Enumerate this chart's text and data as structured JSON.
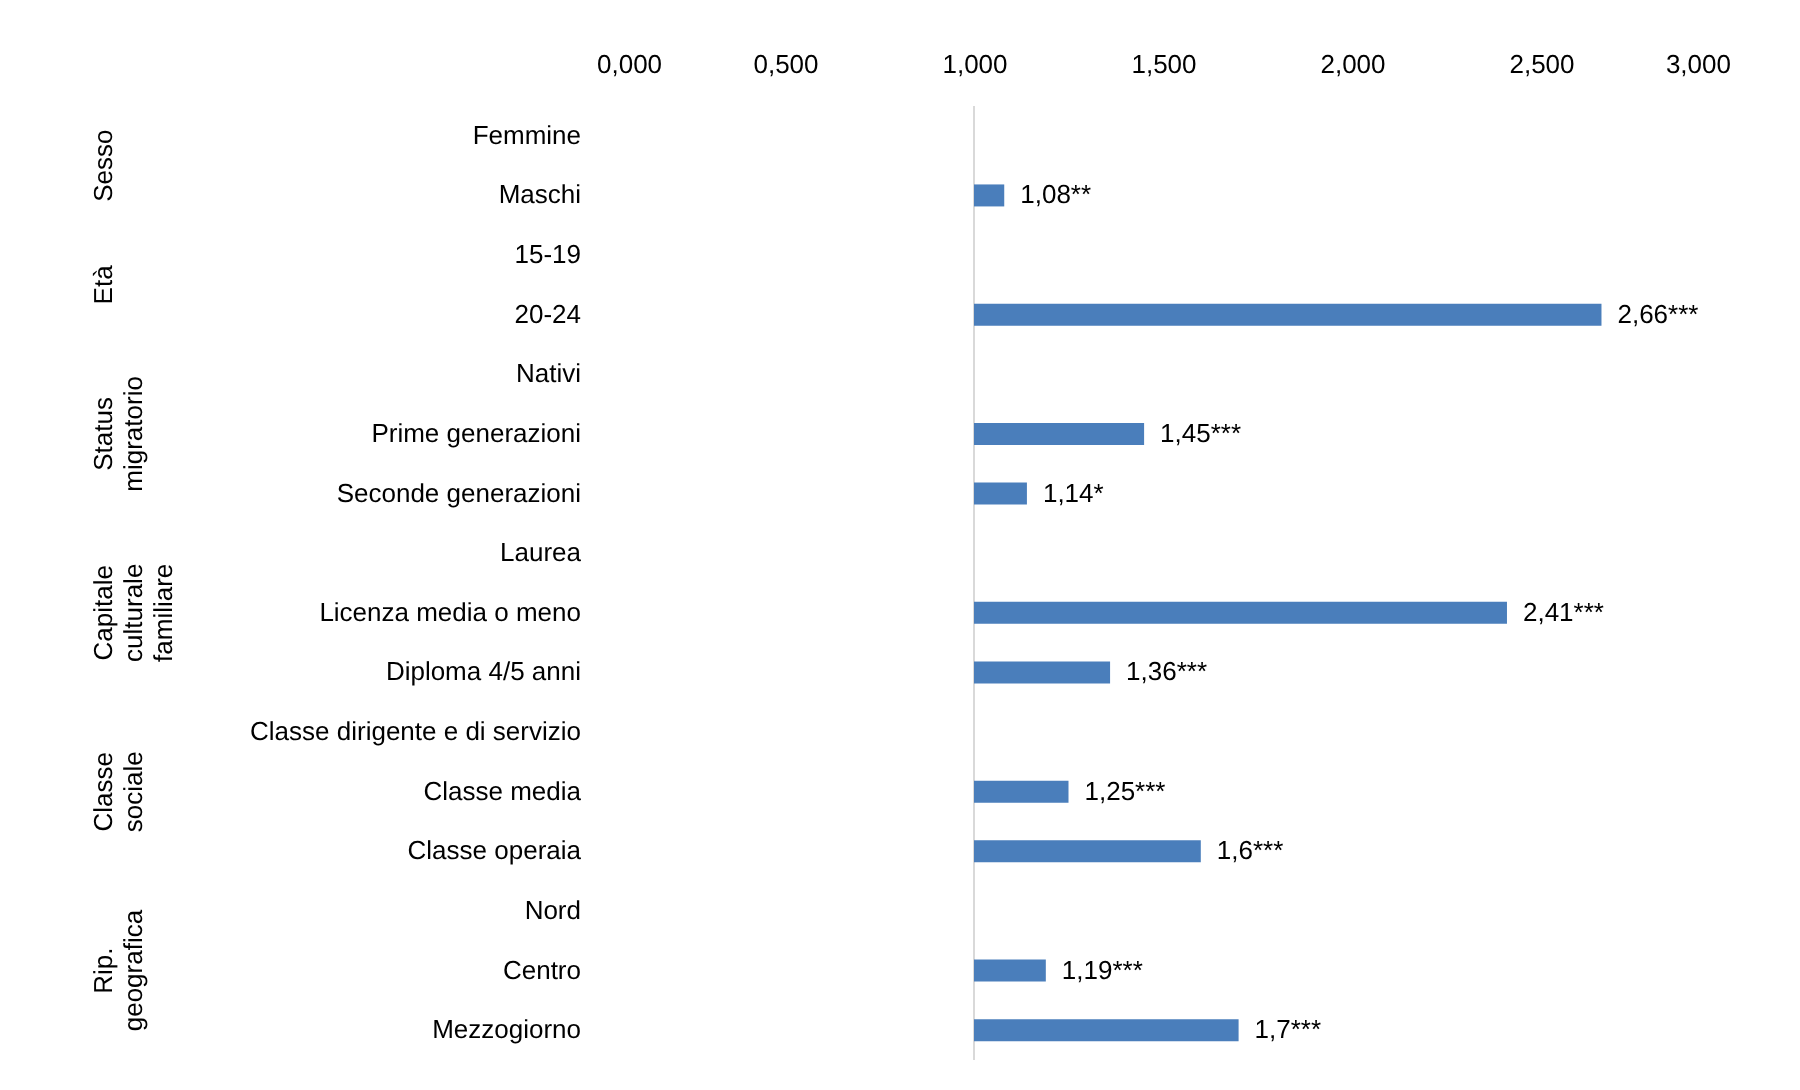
{
  "chart_data": {
    "type": "bar",
    "orientation": "horizontal",
    "categories": [
      "Femmine",
      "Maschi",
      "15-19",
      "20-24",
      "Nativi",
      "Prime generazioni",
      "Seconde generazioni",
      "Laurea",
      "Licenza media o meno",
      "Diploma 4/5 anni",
      "Classe dirigente e di servizio",
      "Classe media",
      "Classe operaia",
      "Nord",
      "Centro",
      "Mezzogiorno"
    ],
    "values": [
      null,
      0.08,
      null,
      1.66,
      null,
      0.45,
      0.14,
      null,
      1.41,
      0.36,
      null,
      0.25,
      0.6,
      null,
      0.19,
      0.7
    ],
    "base": [
      null,
      1,
      null,
      1,
      null,
      1,
      1,
      null,
      1,
      1,
      null,
      1,
      1,
      null,
      1,
      1
    ],
    "value_labels": [
      null,
      "1,08**",
      null,
      "2,66***",
      null,
      "1,45***",
      "1,14*",
      null,
      "2,41***",
      "1,36***",
      null,
      "1,25***",
      "1,6***",
      null,
      "1,19***",
      "1,7***"
    ],
    "color": "#4a7ebb",
    "xlim": [
      0,
      3
    ],
    "xticks": [
      {
        "value": 0,
        "label": "0,000"
      },
      {
        "value": 0.5,
        "label": "0,500"
      },
      {
        "value": 1,
        "label": "1,000"
      },
      {
        "value": 1.5,
        "label": "1,500"
      },
      {
        "value": 2,
        "label": "2,000"
      },
      {
        "value": 2.5,
        "label": "2,500"
      },
      {
        "value": 3,
        "label": "3,000"
      }
    ],
    "ref_lines": [
      {
        "axis": "x",
        "value": 1,
        "color": "#d9d9d9"
      }
    ],
    "annotations": [
      "Sesso",
      "Età",
      "Status migratorio",
      "Capitale culturale familiare",
      "Classe sociale",
      "Rip. geografica"
    ]
  }
}
